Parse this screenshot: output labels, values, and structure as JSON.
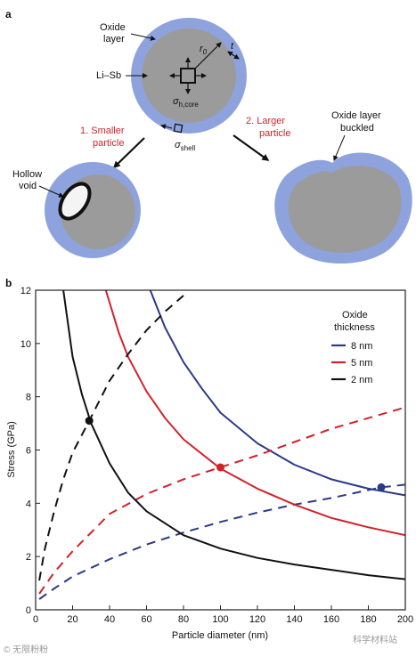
{
  "panel_a": {
    "label": "a",
    "oxide_layer_label": [
      "Oxide",
      "layer"
    ],
    "core_label": "Li–Sb",
    "r0_label": "r",
    "r0_sub": "0",
    "t_label": "t",
    "sigma_core": "σ",
    "sigma_core_sub": "h,core",
    "sigma_shell": "σ",
    "sigma_shell_sub": "shell",
    "smaller_label": [
      "1. Smaller",
      "particle"
    ],
    "larger_label": [
      "2. Larger",
      "particle"
    ],
    "hollow_void_label": [
      "Hollow",
      "void"
    ],
    "buckled_label": [
      "Oxide layer",
      "buckled"
    ],
    "colors": {
      "shell": "#8ea3dd",
      "core": "#9b9b9b",
      "annotation_red": "#d2222a"
    }
  },
  "panel_b": {
    "label": "b",
    "watermark_left": "© 无限粉粉",
    "watermark_right": "科学材料站"
  },
  "chart_data": {
    "type": "line",
    "title": "",
    "xlabel": "Particle diameter (nm)",
    "ylabel": "Stress (GPa)",
    "xlim": [
      0,
      200
    ],
    "ylim": [
      0,
      12
    ],
    "xticks": [
      0,
      20,
      40,
      60,
      80,
      100,
      120,
      140,
      160,
      180,
      200
    ],
    "yticks": [
      0,
      2,
      4,
      6,
      8,
      10,
      12
    ],
    "grid": false,
    "legend": {
      "title": [
        "Oxide",
        "thickness"
      ],
      "placement": "top-right",
      "entries": [
        {
          "label": "8 nm",
          "color": "#2b3a87"
        },
        {
          "label": "5 nm",
          "color": "#d2222a"
        },
        {
          "label": "2 nm",
          "color": "#111111"
        }
      ]
    },
    "series": [
      {
        "name": "8 nm",
        "color": "#2b3a87",
        "style": "solid",
        "x": [
          62,
          70,
          80,
          90,
          100,
          120,
          140,
          160,
          180,
          200
        ],
        "y": [
          12.0,
          10.6,
          9.3,
          8.3,
          7.4,
          6.25,
          5.45,
          4.9,
          4.55,
          4.3
        ]
      },
      {
        "name": "8 nm",
        "color": "#2b3a87",
        "style": "dashed",
        "x": [
          2,
          10,
          20,
          40,
          60,
          80,
          100,
          120,
          140,
          160,
          187,
          200
        ],
        "y": [
          0.4,
          0.8,
          1.25,
          1.9,
          2.45,
          2.9,
          3.3,
          3.65,
          3.95,
          4.2,
          4.6,
          4.7
        ]
      },
      {
        "name": "5 nm",
        "color": "#d2222a",
        "style": "solid",
        "x": [
          38,
          45,
          50,
          60,
          70,
          80,
          100,
          120,
          140,
          160,
          180,
          200
        ],
        "y": [
          12.0,
          10.4,
          9.5,
          8.2,
          7.2,
          6.4,
          5.3,
          4.55,
          3.95,
          3.45,
          3.1,
          2.8
        ]
      },
      {
        "name": "5 nm",
        "color": "#d2222a",
        "style": "dashed",
        "x": [
          2,
          10,
          20,
          40,
          60,
          80,
          100,
          120,
          140,
          160,
          180,
          200
        ],
        "y": [
          0.6,
          1.4,
          2.2,
          3.6,
          4.35,
          4.9,
          5.35,
          5.8,
          6.3,
          6.8,
          7.2,
          7.6
        ]
      },
      {
        "name": "2 nm",
        "color": "#111111",
        "style": "solid",
        "x": [
          15,
          20,
          25,
          30,
          40,
          50,
          60,
          80,
          100,
          120,
          140,
          160,
          180,
          200
        ],
        "y": [
          12.0,
          9.5,
          8.1,
          7.0,
          5.5,
          4.4,
          3.7,
          2.8,
          2.3,
          1.95,
          1.7,
          1.5,
          1.3,
          1.15
        ]
      },
      {
        "name": "2 nm",
        "color": "#111111",
        "style": "dashed",
        "x": [
          2,
          5,
          10,
          15,
          20,
          29,
          40,
          50,
          60,
          70,
          80
        ],
        "y": [
          1.1,
          2.3,
          3.7,
          4.9,
          5.9,
          7.1,
          8.6,
          9.6,
          10.5,
          11.2,
          11.8
        ]
      }
    ],
    "intersections": [
      {
        "x": 29,
        "y": 7.1,
        "color": "#111111"
      },
      {
        "x": 100,
        "y": 5.35,
        "color": "#d2222a"
      },
      {
        "x": 187,
        "y": 4.6,
        "color": "#2b3a87"
      }
    ]
  }
}
